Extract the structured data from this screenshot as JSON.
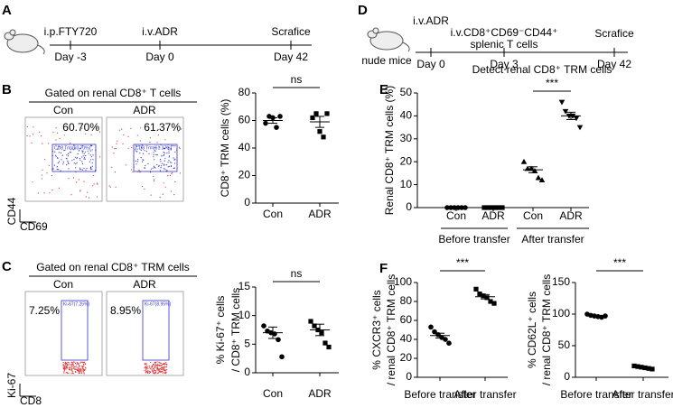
{
  "panel_labels": [
    "A",
    "B",
    "C",
    "D",
    "E",
    "F"
  ],
  "timeline_a": {
    "events": [
      "i.p.FTY720",
      "i.v.ADR",
      "Scrafice"
    ],
    "days": [
      "Day -3",
      "Day 0",
      "Day 42"
    ]
  },
  "timeline_d": {
    "events": [
      "i.v.ADR",
      "i.v.CD8⁺CD69⁻CD44⁺",
      "Scrafice"
    ],
    "event_note": "splenic T cells",
    "days": [
      "Day 0",
      "Day 3",
      "Day 42"
    ],
    "mouse_label": "nude mice"
  },
  "flow_b": {
    "title": "Gated on renal CD8⁺ T cells",
    "samples": [
      "Con",
      "ADR"
    ],
    "percents": [
      "60.70%",
      "61.37%"
    ],
    "gates": [
      "CD8 Trm(60.70%)",
      "CD8 Trm(61.37%)"
    ],
    "x_axis": "CD69",
    "y_axis": "CD44"
  },
  "flow_c": {
    "title": "Gated on renal CD8⁺ TRM cells",
    "samples": [
      "Con",
      "ADR"
    ],
    "percents": [
      "7.25%",
      "8.95%"
    ],
    "gates": [
      "Ki-67(7.25%)",
      "Ki-67(8.95%)"
    ],
    "x_axis": "CD8",
    "y_axis": "Ki-67"
  },
  "chart_data": [
    {
      "type": "dot",
      "categories": [
        "Con",
        "ADR"
      ],
      "markers": [
        "circle",
        "square"
      ],
      "values": [
        [
          58,
          63,
          62,
          55,
          63
        ],
        [
          62,
          65,
          52,
          48,
          65
        ]
      ],
      "means": [
        60,
        59
      ],
      "errors": [
        2,
        4
      ],
      "ylim": [
        0,
        80
      ],
      "yticks": [
        0,
        20,
        40,
        60,
        80
      ],
      "ylabel": [
        "CD8⁺ TRM cells (%)"
      ],
      "annotation": "ns"
    },
    {
      "type": "dot",
      "categories": [
        "Con",
        "ADR"
      ],
      "markers": [
        "circle",
        "square"
      ],
      "values": [
        [
          8.2,
          7.3,
          7,
          6.8,
          5.8,
          2.8
        ],
        [
          9,
          8.2,
          7.5,
          7,
          5.2,
          4.5
        ]
      ],
      "means": [
        7,
        7.5
      ],
      "errors": [
        1,
        1
      ],
      "ylim": [
        0,
        15
      ],
      "yticks": [
        0,
        5,
        10,
        15
      ],
      "ylabel": [
        "% Ki-67⁺ cells",
        "/ CD8⁺ TRM cells"
      ],
      "annotation": "ns"
    },
    {
      "type": "dot",
      "title": "Detect renal CD8⁺ TRM cells",
      "categories": [
        "Con",
        "ADR",
        "Con",
        "ADR"
      ],
      "groups": [
        "Before transfer",
        "After transfer"
      ],
      "markers": [
        "circle",
        "square",
        "triangle",
        "triangle-down"
      ],
      "values": [
        [
          0,
          0,
          0,
          0,
          0,
          0
        ],
        [
          0,
          0,
          0,
          0,
          0,
          0
        ],
        [
          20,
          17,
          17,
          16,
          13,
          12
        ],
        [
          46,
          42,
          40,
          40,
          39,
          35
        ]
      ],
      "means": [
        0,
        0,
        16.5,
        40
      ],
      "errors": [
        0,
        0,
        1.3,
        1.6
      ],
      "ylim": [
        0,
        50
      ],
      "yticks": [
        0,
        10,
        20,
        30,
        40,
        50
      ],
      "ylabel": [
        "Renal CD8⁺ TRM cells (%)"
      ],
      "annotation": "***"
    },
    {
      "type": "dot",
      "categories": [
        "Before transfer",
        "After transfer"
      ],
      "markers": [
        "circle",
        "square"
      ],
      "values": [
        [
          53,
          48,
          45,
          42,
          40,
          36
        ],
        [
          93,
          88,
          86,
          84,
          80,
          78
        ]
      ],
      "means": [
        44,
        85
      ],
      "errors": [
        2.5,
        2.3
      ],
      "ylim": [
        0,
        100
      ],
      "yticks": [
        0,
        20,
        40,
        60,
        80,
        100
      ],
      "ylabel": [
        "% CXCR3⁺ cells",
        "/ renal CD8⁺ TRM cells"
      ],
      "annotation": "***"
    },
    {
      "type": "dot",
      "categories": [
        "Before transfer",
        "After transfer"
      ],
      "markers": [
        "circle",
        "square"
      ],
      "values": [
        [
          100,
          98,
          97,
          96,
          95,
          97
        ],
        [
          18,
          17,
          16,
          15,
          14,
          13
        ]
      ],
      "means": [
        97,
        15
      ],
      "errors": [
        1,
        1
      ],
      "ylim": [
        0,
        150
      ],
      "yticks": [
        0,
        50,
        100,
        150
      ],
      "ylabel": [
        "% CD62L⁺ cells",
        "/ renal CD8⁺ TRM cells"
      ],
      "annotation": "***"
    }
  ]
}
